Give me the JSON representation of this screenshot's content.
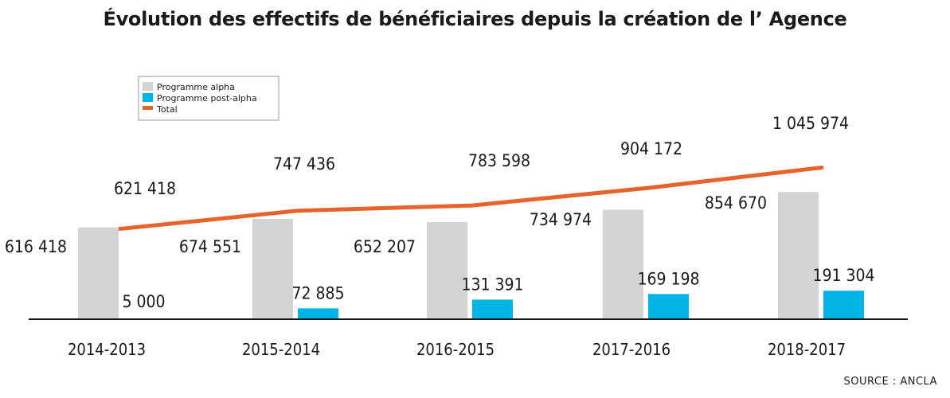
{
  "chart_data": {
    "type": "bar",
    "title": "Évolution des effectifs de bénéficiaires depuis la création de l’ Agence",
    "categories": [
      "2014-2013",
      "2015-2014",
      "2016-2015",
      "2017-2016",
      "2018-2017"
    ],
    "series": [
      {
        "name": "Programme alpha",
        "type": "bar",
        "color": "#d4d4d6",
        "values": [
          616418,
          674551,
          652207,
          734974,
          854670
        ],
        "labels": [
          "616 418",
          "674 551",
          "652 207",
          "734 974",
          "854 670"
        ]
      },
      {
        "name": "Programme post-alpha",
        "type": "bar",
        "color": "#00b4e6",
        "values": [
          5000,
          72885,
          131391,
          169198,
          191304
        ],
        "labels": [
          "5 000",
          "72 885",
          "131 391",
          "169 198",
          "191 304"
        ]
      },
      {
        "name": "Total",
        "type": "line",
        "color": "#e8632b",
        "values": [
          621418,
          747436,
          783598,
          904172,
          1045974
        ],
        "labels": [
          "621 418",
          "747 436",
          "783 598",
          "904 172",
          "1 045 974"
        ]
      }
    ],
    "ylim": [
      0,
      1200000
    ],
    "grid": false,
    "legend_position": "top-left",
    "source": "SOURCE : ANCLA"
  }
}
